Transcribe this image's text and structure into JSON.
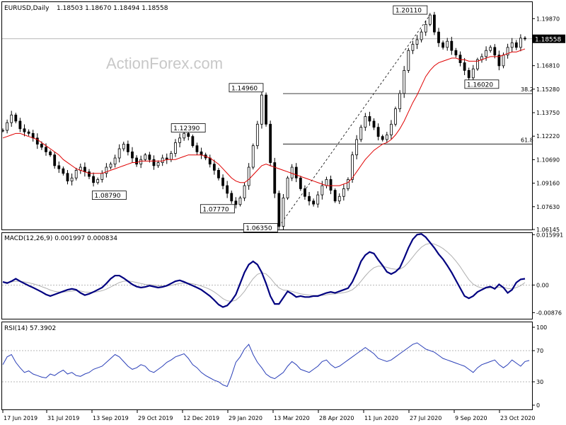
{
  "header": {
    "symbol": "EURUSD,Daily",
    "ohlc": "1.18503 1.18670 1.18494 1.18558"
  },
  "watermark": "ActionForex.com",
  "colors": {
    "candle": "#000000",
    "ma": "#e00000",
    "macd": "#000080",
    "macd_signal": "#b0b0b0",
    "rsi": "#2a3fb8",
    "grid": "#000000",
    "dashed": "#a0a0a0"
  },
  "chart_data": [
    {
      "type": "line",
      "panel": "price",
      "title": "EURUSD,Daily",
      "ylim": [
        1.06145,
        1.20945
      ],
      "y_ticks": [
        "1.19870",
        "1.18558",
        "1.16810",
        "1.15280",
        "1.13750",
        "1.12220",
        "1.10690",
        "1.09160",
        "1.07630",
        "1.06145"
      ],
      "y_tick_values": [
        1.1987,
        1.18558,
        1.1681,
        1.1528,
        1.1375,
        1.1222,
        1.1069,
        1.0916,
        1.0763,
        1.06145
      ],
      "current_price_label": "1.18558",
      "x_ticks": [
        "17 Jun 2019",
        "31 Jul 2019",
        "13 Sep 2019",
        "29 Oct 2019",
        "12 Dec 2019",
        "29 Jan 2020",
        "13 Mar 2020",
        "28 Apr 2020",
        "11 Jun 2020",
        "27 Jul 2020",
        "9 Sep 2020",
        "23 Oct 2020"
      ],
      "series": [
        {
          "role": "price",
          "values": [
            1.126,
            1.131,
            1.136,
            1.132,
            1.127,
            1.125,
            1.124,
            1.121,
            1.117,
            1.115,
            1.112,
            1.11,
            1.103,
            1.101,
            1.098,
            1.093,
            1.095,
            1.1,
            1.102,
            1.099,
            1.096,
            1.092,
            1.094,
            1.098,
            1.102,
            1.104,
            1.108,
            1.114,
            1.117,
            1.112,
            1.108,
            1.104,
            1.107,
            1.11,
            1.107,
            1.103,
            1.105,
            1.108,
            1.107,
            1.111,
            1.118,
            1.121,
            1.124,
            1.122,
            1.116,
            1.112,
            1.11,
            1.108,
            1.104,
            1.1,
            1.095,
            1.09,
            1.085,
            1.08,
            1.0777,
            1.082,
            1.09,
            1.102,
            1.116,
            1.13,
            1.149,
            1.13,
            1.105,
            1.085,
            1.0635,
            1.082,
            1.095,
            1.102,
            1.095,
            1.088,
            1.083,
            1.08,
            1.078,
            1.084,
            1.09,
            1.094,
            1.087,
            1.08,
            1.083,
            1.088,
            1.094,
            1.11,
            1.12,
            1.128,
            1.135,
            1.132,
            1.128,
            1.122,
            1.12,
            1.123,
            1.13,
            1.14,
            1.15,
            1.165,
            1.178,
            1.182,
            1.185,
            1.19,
            1.195,
            1.2011,
            1.19,
            1.183,
            1.18,
            1.184,
            1.178,
            1.175,
            1.17,
            1.165,
            1.1602,
            1.166,
            1.172,
            1.174,
            1.178,
            1.18,
            1.175,
            1.168,
            1.175,
            1.18,
            1.183,
            1.18,
            1.186,
            1.1856
          ]
        },
        {
          "role": "moving-average",
          "values": [
            1.121,
            1.122,
            1.123,
            1.124,
            1.124,
            1.123,
            1.122,
            1.121,
            1.12,
            1.118,
            1.116,
            1.114,
            1.112,
            1.11,
            1.107,
            1.105,
            1.103,
            1.101,
            1.1,
            1.099,
            1.098,
            1.098,
            1.098,
            1.098,
            1.099,
            1.1,
            1.101,
            1.102,
            1.103,
            1.104,
            1.105,
            1.105,
            1.106,
            1.106,
            1.106,
            1.106,
            1.106,
            1.106,
            1.107,
            1.107,
            1.107,
            1.108,
            1.109,
            1.11,
            1.11,
            1.11,
            1.11,
            1.109,
            1.108,
            1.106,
            1.104,
            1.101,
            1.098,
            1.095,
            1.093,
            1.092,
            1.092,
            1.094,
            1.097,
            1.1,
            1.103,
            1.104,
            1.103,
            1.102,
            1.101,
            1.1,
            1.099,
            1.098,
            1.097,
            1.096,
            1.095,
            1.094,
            1.093,
            1.092,
            1.091,
            1.09,
            1.09,
            1.09,
            1.09,
            1.091,
            1.092,
            1.095,
            1.099,
            1.103,
            1.107,
            1.11,
            1.113,
            1.115,
            1.117,
            1.118,
            1.12,
            1.123,
            1.127,
            1.132,
            1.138,
            1.144,
            1.149,
            1.155,
            1.161,
            1.165,
            1.168,
            1.17,
            1.171,
            1.172,
            1.173,
            1.173,
            1.172,
            1.172,
            1.171,
            1.171,
            1.171,
            1.172,
            1.173,
            1.174,
            1.174,
            1.174,
            1.175,
            1.176,
            1.177,
            1.177,
            1.178,
            1.179
          ]
        }
      ],
      "annotations": [
        {
          "label": "1.20110",
          "x": 99,
          "y": 1.2011
        },
        {
          "label": "1.14960",
          "x": 60,
          "y": 1.1496
        },
        {
          "label": "1.12390",
          "x": 42,
          "y": 1.1239
        },
        {
          "label": "1.08790",
          "x": 24,
          "y": 1.0879
        },
        {
          "label": "1.07770",
          "x": 54,
          "y": 1.0777
        },
        {
          "label": "1.06350",
          "x": 64,
          "y": 1.0635
        },
        {
          "label": "1.16020",
          "x": 110,
          "y": 1.1602
        }
      ],
      "fib_levels": [
        {
          "label": "38.2",
          "y": 1.1499
        },
        {
          "label": "61.8",
          "y": 1.1171
        }
      ]
    },
    {
      "type": "line",
      "panel": "macd",
      "title": "MACD(12,26,9) 0.001997 0.000834",
      "ylim": [
        -0.0107,
        0.0165
      ],
      "y_ticks": [
        "0.015991",
        "0.00",
        "-0.00876"
      ],
      "y_tick_values": [
        0.015991,
        0,
        -0.00876
      ],
      "series": [
        {
          "role": "macd",
          "values": [
            0.001,
            0.0006,
            0.0012,
            0.002,
            0.0012,
            0.0005,
            -0.0002,
            -0.0008,
            -0.0015,
            -0.0022,
            -0.003,
            -0.0035,
            -0.003,
            -0.0025,
            -0.002,
            -0.0015,
            -0.0012,
            -0.0015,
            -0.0025,
            -0.0032,
            -0.0028,
            -0.0022,
            -0.0015,
            -0.0008,
            0.0005,
            0.002,
            0.003,
            0.003,
            0.0022,
            0.0012,
            0.0002,
            -0.0005,
            -0.0008,
            -0.0006,
            -0.0002,
            -0.0005,
            -0.0008,
            -0.0006,
            -0.0002,
            0.0005,
            0.0012,
            0.0015,
            0.001,
            0.0004,
            -0.0002,
            -0.0008,
            -0.0015,
            -0.0025,
            -0.0035,
            -0.0048,
            -0.0062,
            -0.007,
            -0.0065,
            -0.005,
            -0.003,
            0.0005,
            0.004,
            0.0065,
            0.0075,
            0.0065,
            0.004,
            0.0005,
            -0.0035,
            -0.006,
            -0.006,
            -0.004,
            -0.002,
            -0.0028,
            -0.0038,
            -0.0035,
            -0.0038,
            -0.0038,
            -0.0035,
            -0.0035,
            -0.003,
            -0.0025,
            -0.0022,
            -0.0025,
            -0.002,
            -0.0015,
            -0.001,
            0.001,
            0.004,
            0.0075,
            0.0095,
            0.0105,
            0.01,
            0.008,
            0.0062,
            0.0042,
            0.0035,
            0.0042,
            0.0055,
            0.0085,
            0.0118,
            0.0145,
            0.016,
            0.0162,
            0.0152,
            0.0135,
            0.0118,
            0.0098,
            0.0082,
            0.0062,
            0.004,
            0.0015,
            -0.001,
            -0.0035,
            -0.0042,
            -0.0035,
            -0.0022,
            -0.0015,
            -0.0008,
            -0.0005,
            -0.0012,
            0.0002,
            -0.0008,
            -0.0025,
            -0.0015,
            0.0008,
            0.0018,
            0.002
          ]
        },
        {
          "role": "signal",
          "values": [
            0.001,
            0.0009,
            0.001,
            0.0012,
            0.0012,
            0.001,
            0.0007,
            0.0004,
            0,
            -0.0005,
            -0.001,
            -0.0016,
            -0.002,
            -0.0022,
            -0.0022,
            -0.0021,
            -0.0019,
            -0.0018,
            -0.0019,
            -0.0022,
            -0.0023,
            -0.0023,
            -0.0021,
            -0.0018,
            -0.0013,
            -0.0006,
            0.0001,
            0.0008,
            0.0012,
            0.0013,
            0.0011,
            0.0008,
            0.0005,
            0.0002,
            0.0001,
            0,
            -0.0002,
            -0.0003,
            -0.0003,
            -0.0001,
            0.0002,
            0.0005,
            0.0006,
            0.0006,
            0.0004,
            0.0001,
            -0.0003,
            -0.0008,
            -0.0014,
            -0.0022,
            -0.0032,
            -0.0043,
            -0.005,
            -0.0052,
            -0.0048,
            -0.0036,
            -0.002,
            0.0001,
            0.002,
            0.0034,
            0.0039,
            0.0035,
            0.0022,
            0.0005,
            -0.0009,
            -0.0016,
            -0.0017,
            -0.002,
            -0.0024,
            -0.0028,
            -0.003,
            -0.0032,
            -0.0033,
            -0.0033,
            -0.0033,
            -0.0031,
            -0.0029,
            -0.0028,
            -0.0026,
            -0.0024,
            -0.0021,
            -0.0015,
            -0.0004,
            0.0012,
            0.0029,
            0.0044,
            0.0055,
            0.006,
            0.006,
            0.0056,
            0.0052,
            0.005,
            0.005,
            0.0058,
            0.0072,
            0.0089,
            0.0106,
            0.012,
            0.0129,
            0.0132,
            0.013,
            0.0124,
            0.0116,
            0.0105,
            0.0092,
            0.0076,
            0.0058,
            0.0037,
            0.0017,
            0.0003,
            -0.0005,
            -0.0009,
            -0.001,
            -0.0009,
            -0.001,
            -0.0007,
            -0.0007,
            -0.0011,
            -0.0012,
            -0.0008,
            -0.0002,
            0.0008
          ]
        }
      ]
    },
    {
      "type": "line",
      "panel": "rsi",
      "title": "RSI(14) 57.3902",
      "ylim": [
        0,
        100
      ],
      "y_ticks": [
        "100",
        "70",
        "30",
        "0"
      ],
      "y_tick_values": [
        100,
        70,
        30,
        0
      ],
      "series": [
        {
          "role": "rsi",
          "values": [
            52,
            62,
            65,
            55,
            48,
            42,
            44,
            40,
            38,
            36,
            35,
            40,
            38,
            42,
            45,
            40,
            42,
            38,
            37,
            40,
            42,
            46,
            48,
            50,
            55,
            60,
            65,
            62,
            56,
            50,
            46,
            48,
            52,
            50,
            44,
            42,
            46,
            50,
            55,
            58,
            62,
            64,
            66,
            60,
            52,
            48,
            42,
            38,
            35,
            32,
            30,
            26,
            24,
            38,
            55,
            62,
            72,
            78,
            65,
            55,
            48,
            40,
            36,
            34,
            38,
            42,
            50,
            56,
            52,
            46,
            44,
            42,
            46,
            50,
            56,
            58,
            52,
            48,
            50,
            54,
            58,
            62,
            66,
            70,
            74,
            70,
            66,
            60,
            58,
            56,
            58,
            62,
            66,
            70,
            74,
            78,
            80,
            76,
            72,
            70,
            68,
            64,
            60,
            58,
            56,
            54,
            52,
            50,
            46,
            42,
            48,
            52,
            54,
            56,
            58,
            52,
            48,
            52,
            58,
            54,
            50,
            56,
            57.39
          ]
        }
      ]
    }
  ]
}
